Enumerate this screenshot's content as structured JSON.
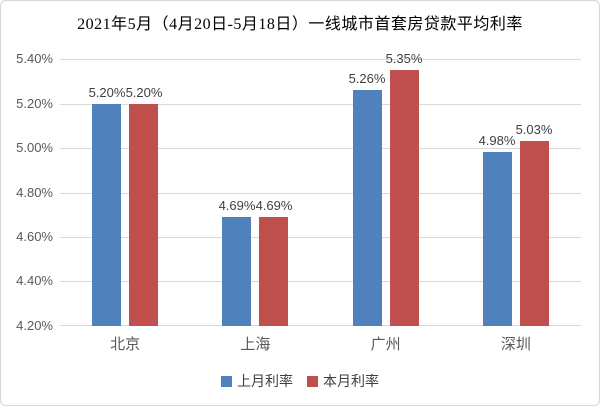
{
  "chart_data": {
    "type": "bar",
    "title": "2021年5月（4月20日-5月18日）一线城市首套房贷款平均利率",
    "categories": [
      "北京",
      "上海",
      "广州",
      "深圳"
    ],
    "series": [
      {
        "name": "上月利率",
        "color": "#4F81BD",
        "values": [
          5.2,
          4.69,
          5.26,
          4.98
        ],
        "labels": [
          "5.20%",
          "4.69%",
          "5.26%",
          "4.98%"
        ]
      },
      {
        "name": "本月利率",
        "color": "#C0504D",
        "values": [
          5.2,
          4.69,
          5.35,
          5.03
        ],
        "labels": [
          "5.20%",
          "4.69%",
          "5.35%",
          "5.03%"
        ]
      }
    ],
    "ylim": [
      4.2,
      5.4
    ],
    "yticks": [
      {
        "value": 5.4,
        "label": "5.40%"
      },
      {
        "value": 5.2,
        "label": "5.20%"
      },
      {
        "value": 5.0,
        "label": "5.00%"
      },
      {
        "value": 4.8,
        "label": "4.80%"
      },
      {
        "value": 4.6,
        "label": "4.60%"
      },
      {
        "value": 4.4,
        "label": "4.40%"
      },
      {
        "value": 4.2,
        "label": "4.20%"
      }
    ],
    "grid": true,
    "legend_position": "bottom",
    "colors": {
      "gridline": "#d9d9d9",
      "axis_text": "#595959",
      "value_label_text": "#404040",
      "title_text": "#000000",
      "background": "#ffffff",
      "border": "#d6d6d6"
    }
  }
}
